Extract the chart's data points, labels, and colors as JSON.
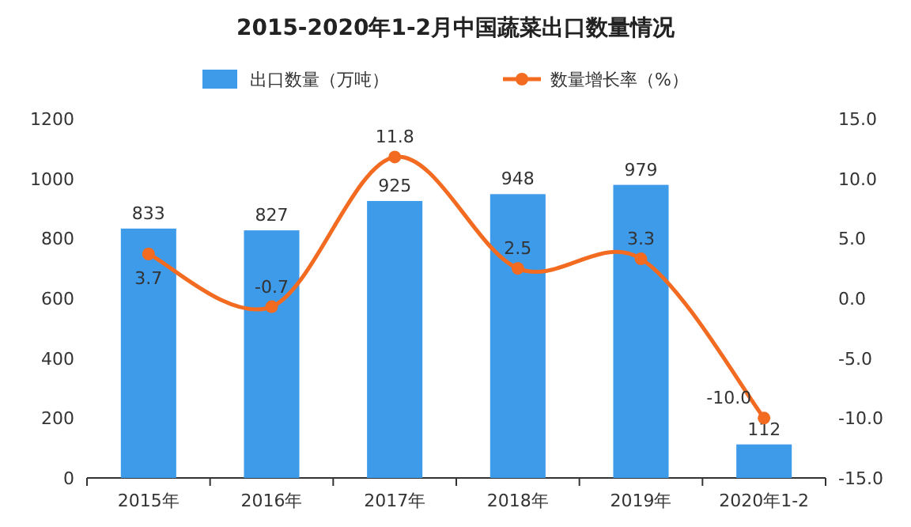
{
  "chart_data": {
    "type": "bar",
    "title": "2015-2020年1-2月中国蔬菜出口数量情况",
    "categories": [
      "2015年",
      "2016年",
      "2017年",
      "2018年",
      "2019年",
      "2020年1-2"
    ],
    "series": [
      {
        "name": "出口数量（万吨）",
        "color": "#3d9be9",
        "values": [
          833,
          827,
          925,
          948,
          979,
          112
        ]
      },
      {
        "name": "数量增长率（%）",
        "type": "line",
        "axis": "y2",
        "color": "#f26b21",
        "marker": "circle",
        "values": [
          3.7,
          -0.7,
          11.8,
          2.5,
          3.3,
          -10.0
        ],
        "value_labels": [
          "3.7",
          "-0.7",
          "11.8",
          "2.5",
          "3.3",
          "-10.0"
        ]
      }
    ],
    "ylim": [
      0,
      1200
    ],
    "yticks": [
      0,
      200,
      400,
      600,
      800,
      1000,
      1200
    ],
    "y2lim": [
      -15,
      15
    ],
    "y2ticks": [
      {
        "value": -15,
        "label": "-15.0"
      },
      {
        "value": -10,
        "label": "-10.0"
      },
      {
        "value": -5,
        "label": "-5.0"
      },
      {
        "value": 0,
        "label": "0.0"
      },
      {
        "value": 5,
        "label": "5.0"
      },
      {
        "value": 10,
        "label": "10.0"
      },
      {
        "value": 15,
        "label": "15.0"
      }
    ],
    "data_labels": true,
    "legend": "top",
    "grid": false
  }
}
